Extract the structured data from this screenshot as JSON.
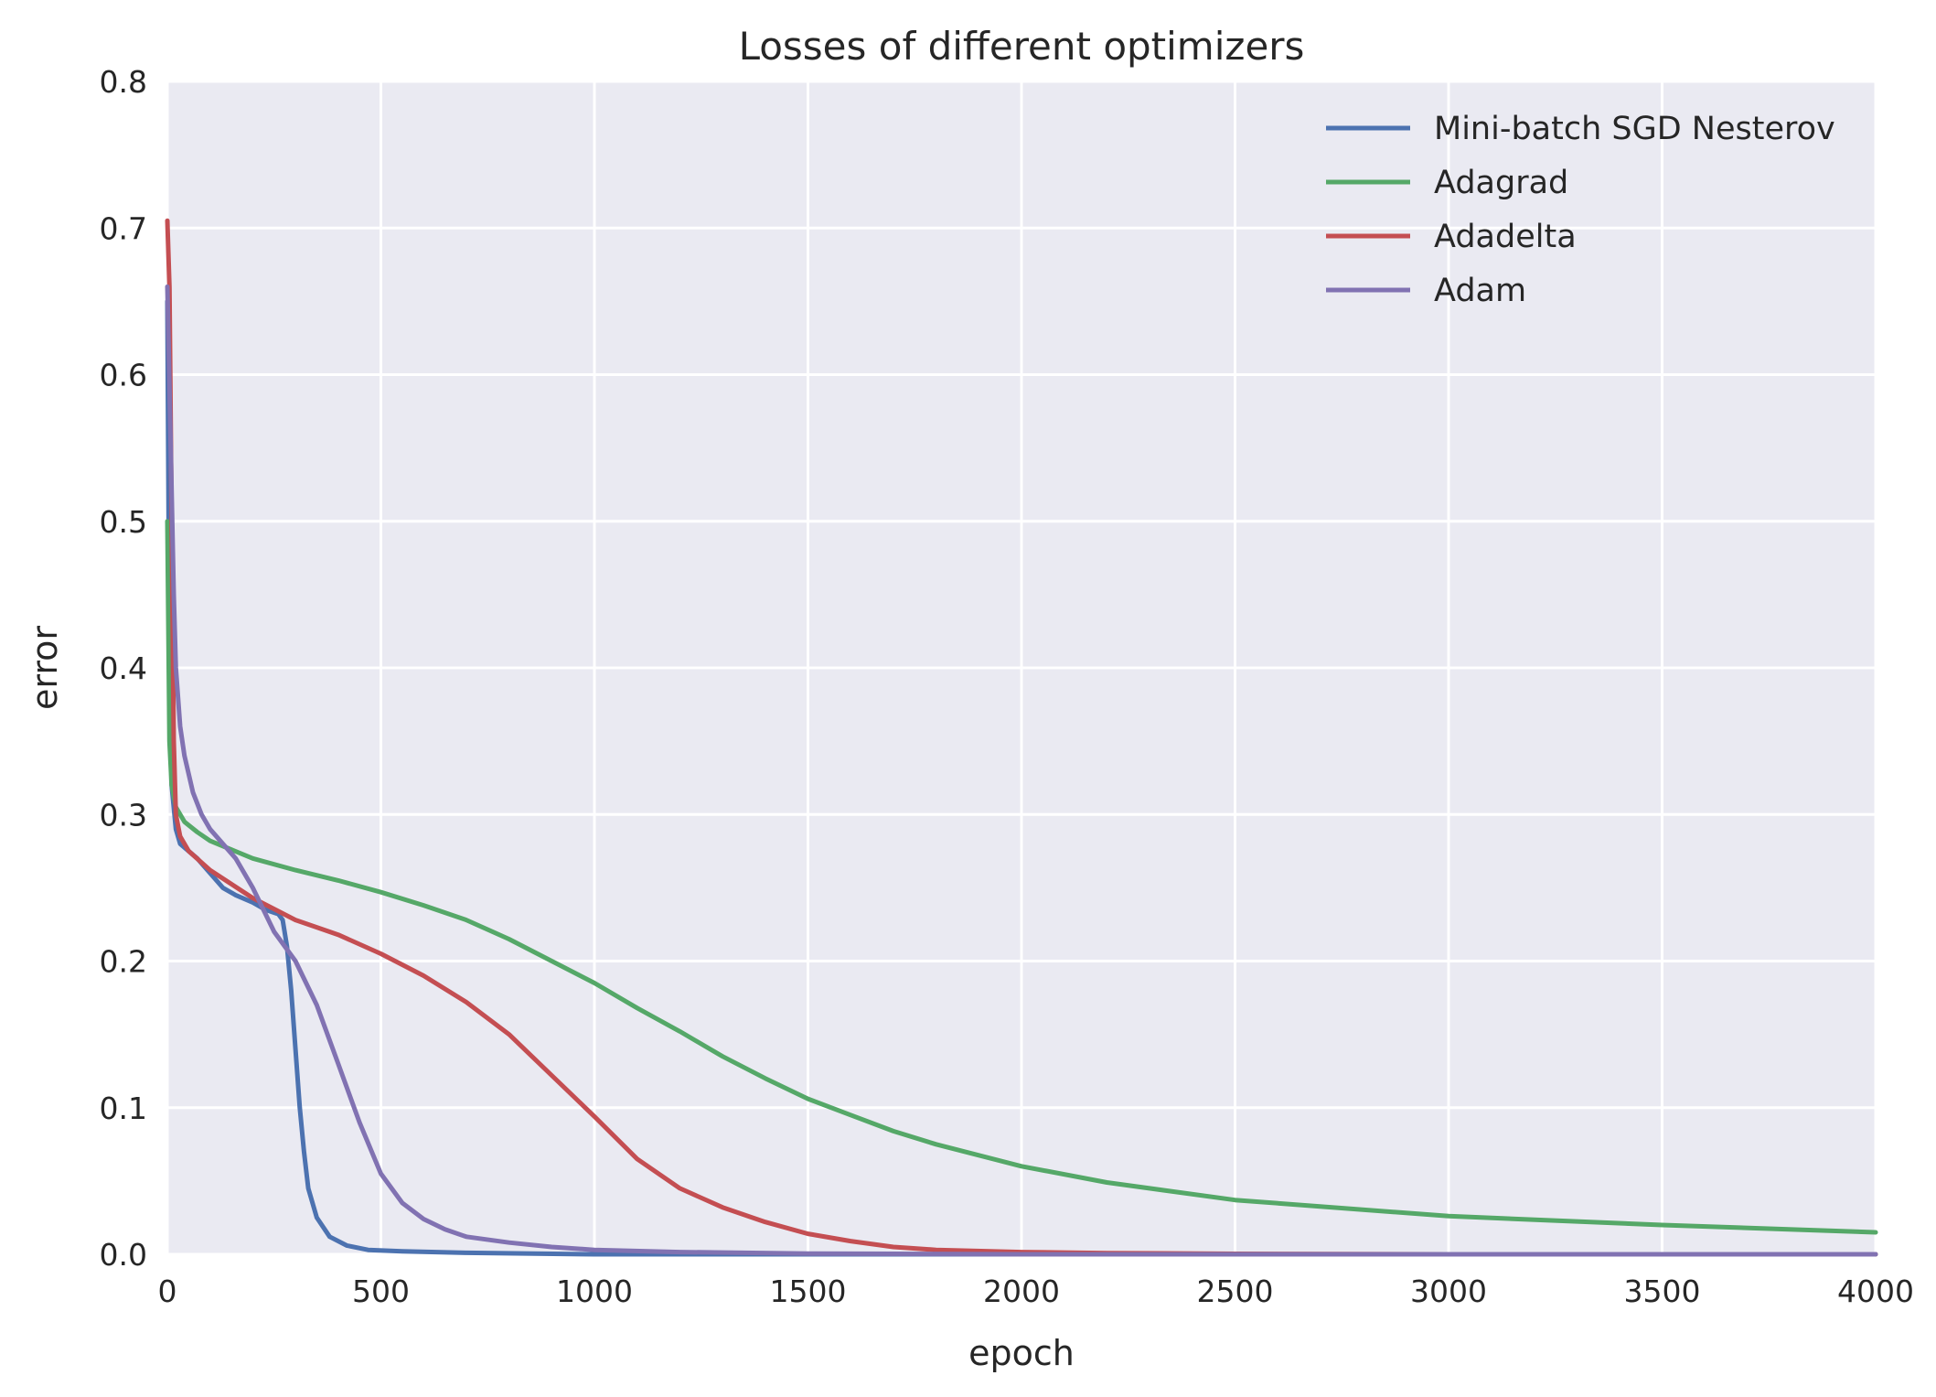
{
  "chart_data": {
    "type": "line",
    "title": "Losses of different optimizers",
    "xlabel": "epoch",
    "ylabel": "error",
    "xlim": [
      0,
      4000
    ],
    "ylim": [
      0.0,
      0.8
    ],
    "xticks": [
      0,
      500,
      1000,
      1500,
      2000,
      2500,
      3000,
      3500,
      4000
    ],
    "xtick_labels": [
      "0",
      "500",
      "1000",
      "1500",
      "2000",
      "2500",
      "3000",
      "3500",
      "4000"
    ],
    "yticks": [
      0.0,
      0.1,
      0.2,
      0.3,
      0.4,
      0.5,
      0.6,
      0.7,
      0.8
    ],
    "ytick_labels": [
      "0.0",
      "0.1",
      "0.2",
      "0.3",
      "0.4",
      "0.5",
      "0.6",
      "0.7",
      "0.8"
    ],
    "grid": true,
    "legend_position": "top-right",
    "series": [
      {
        "name": "Mini-batch SGD Nesterov",
        "color": "#4c72b0",
        "x": [
          0,
          5,
          10,
          20,
          30,
          50,
          70,
          100,
          130,
          160,
          200,
          230,
          250,
          260,
          270,
          280,
          290,
          300,
          310,
          320,
          330,
          350,
          380,
          420,
          470,
          550,
          700,
          1000,
          2000,
          4000
        ],
        "y": [
          0.65,
          0.4,
          0.32,
          0.29,
          0.28,
          0.275,
          0.27,
          0.26,
          0.25,
          0.245,
          0.24,
          0.235,
          0.233,
          0.232,
          0.228,
          0.21,
          0.18,
          0.14,
          0.1,
          0.07,
          0.045,
          0.025,
          0.012,
          0.006,
          0.003,
          0.002,
          0.001,
          0.0,
          0.0,
          0.0
        ]
      },
      {
        "name": "Adagrad",
        "color": "#55a868",
        "x": [
          0,
          5,
          10,
          20,
          40,
          70,
          100,
          200,
          300,
          400,
          500,
          600,
          700,
          800,
          900,
          1000,
          1100,
          1200,
          1300,
          1400,
          1500,
          1600,
          1700,
          1800,
          2000,
          2200,
          2500,
          3000,
          3500,
          4000
        ],
        "y": [
          0.5,
          0.35,
          0.32,
          0.305,
          0.295,
          0.288,
          0.282,
          0.27,
          0.262,
          0.255,
          0.247,
          0.238,
          0.228,
          0.215,
          0.2,
          0.185,
          0.168,
          0.152,
          0.135,
          0.12,
          0.106,
          0.095,
          0.084,
          0.075,
          0.06,
          0.049,
          0.037,
          0.026,
          0.02,
          0.015
        ]
      },
      {
        "name": "Adadelta",
        "color": "#c44e52",
        "x": [
          0,
          5,
          10,
          15,
          20,
          30,
          50,
          100,
          200,
          300,
          400,
          500,
          600,
          700,
          800,
          900,
          1000,
          1100,
          1200,
          1300,
          1400,
          1500,
          1600,
          1700,
          1800,
          2000,
          2200,
          2500,
          3000,
          4000
        ],
        "y": [
          0.705,
          0.66,
          0.5,
          0.35,
          0.3,
          0.285,
          0.275,
          0.262,
          0.243,
          0.228,
          0.218,
          0.205,
          0.19,
          0.172,
          0.15,
          0.122,
          0.094,
          0.065,
          0.045,
          0.032,
          0.022,
          0.014,
          0.009,
          0.005,
          0.003,
          0.0015,
          0.0008,
          0.0003,
          0.0,
          0.0
        ]
      },
      {
        "name": "Adam",
        "color": "#8172b2",
        "x": [
          0,
          3,
          8,
          15,
          20,
          30,
          40,
          60,
          80,
          100,
          130,
          160,
          200,
          250,
          300,
          350,
          400,
          450,
          500,
          550,
          600,
          650,
          700,
          800,
          900,
          1000,
          1200,
          1500,
          2000,
          4000
        ],
        "y": [
          0.66,
          0.62,
          0.55,
          0.45,
          0.4,
          0.36,
          0.34,
          0.315,
          0.3,
          0.29,
          0.28,
          0.27,
          0.25,
          0.22,
          0.2,
          0.17,
          0.13,
          0.09,
          0.055,
          0.035,
          0.024,
          0.017,
          0.012,
          0.008,
          0.005,
          0.003,
          0.0015,
          0.0005,
          0.0,
          0.0
        ]
      }
    ]
  }
}
